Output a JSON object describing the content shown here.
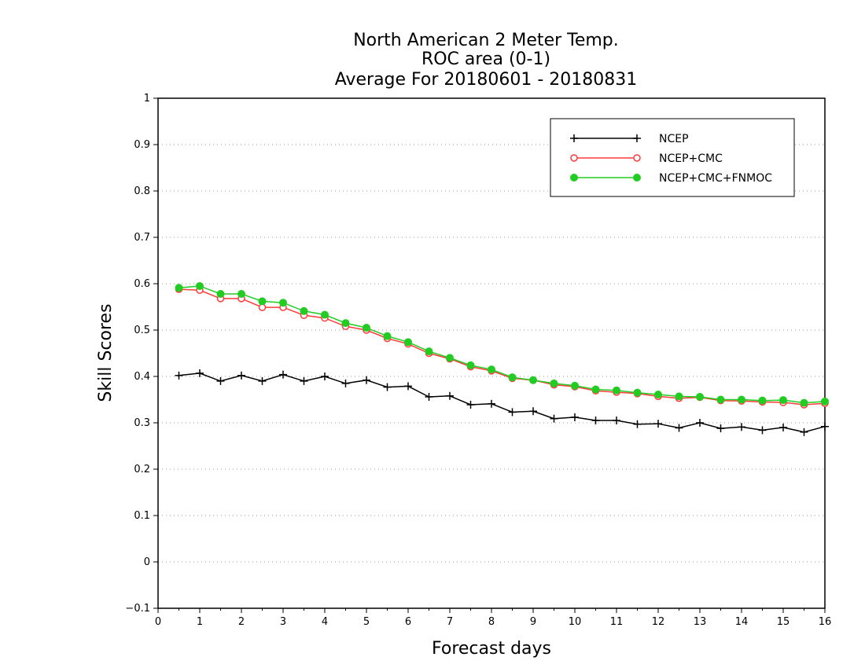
{
  "chart_data": {
    "type": "line",
    "title": [
      "North American 2 Meter Temp.",
      "ROC area (0-1)",
      "Average For 20180601 - 20180831"
    ],
    "xlabel": "Forecast days",
    "ylabel": "Skill Scores",
    "xlim": [
      0,
      16
    ],
    "ylim": [
      -0.1,
      1
    ],
    "x_ticks": [
      "0",
      "1",
      "2",
      "3",
      "4",
      "5",
      "6",
      "7",
      "8",
      "9",
      "10",
      "11",
      "12",
      "13",
      "14",
      "15",
      "16"
    ],
    "y_ticks": [
      "−0.1",
      "0",
      "0.1",
      "0.2",
      "0.3",
      "0.4",
      "0.5",
      "0.6",
      "0.7",
      "0.8",
      "0.9",
      "1"
    ],
    "grid": "horizontal-dotted",
    "legend_position": "top-right",
    "x": [
      0.5,
      1,
      1.5,
      2,
      2.5,
      3,
      3.5,
      4,
      4.5,
      5,
      5.5,
      6,
      6.5,
      7,
      7.5,
      8,
      8.5,
      9,
      9.5,
      10,
      10.5,
      11,
      11.5,
      12,
      12.5,
      13,
      13.5,
      14,
      14.5,
      15,
      15.5,
      16
    ],
    "series": [
      {
        "name": "NCEP",
        "color": "#000000",
        "marker": "plus",
        "values": [
          0.402,
          0.407,
          0.39,
          0.402,
          0.39,
          0.404,
          0.39,
          0.4,
          0.385,
          0.392,
          0.377,
          0.379,
          0.356,
          0.358,
          0.339,
          0.341,
          0.323,
          0.325,
          0.309,
          0.312,
          0.305,
          0.305,
          0.297,
          0.298,
          0.289,
          0.3,
          0.288,
          0.291,
          0.284,
          0.29,
          0.28,
          0.292
        ]
      },
      {
        "name": "NCEP+CMC",
        "color": "#ff3b3b",
        "marker": "open-circle",
        "values": [
          0.588,
          0.586,
          0.568,
          0.568,
          0.549,
          0.549,
          0.532,
          0.526,
          0.508,
          0.5,
          0.482,
          0.47,
          0.45,
          0.438,
          0.421,
          0.412,
          0.396,
          0.392,
          0.382,
          0.378,
          0.369,
          0.366,
          0.363,
          0.357,
          0.353,
          0.355,
          0.348,
          0.347,
          0.345,
          0.344,
          0.339,
          0.342
        ]
      },
      {
        "name": "NCEP+CMC+FNMOC",
        "color": "#22cc22",
        "marker": "filled-circle",
        "values": [
          0.591,
          0.595,
          0.578,
          0.578,
          0.562,
          0.559,
          0.541,
          0.533,
          0.515,
          0.505,
          0.487,
          0.474,
          0.454,
          0.44,
          0.424,
          0.415,
          0.398,
          0.392,
          0.385,
          0.38,
          0.372,
          0.37,
          0.365,
          0.361,
          0.357,
          0.356,
          0.35,
          0.35,
          0.348,
          0.349,
          0.343,
          0.346
        ]
      }
    ]
  }
}
